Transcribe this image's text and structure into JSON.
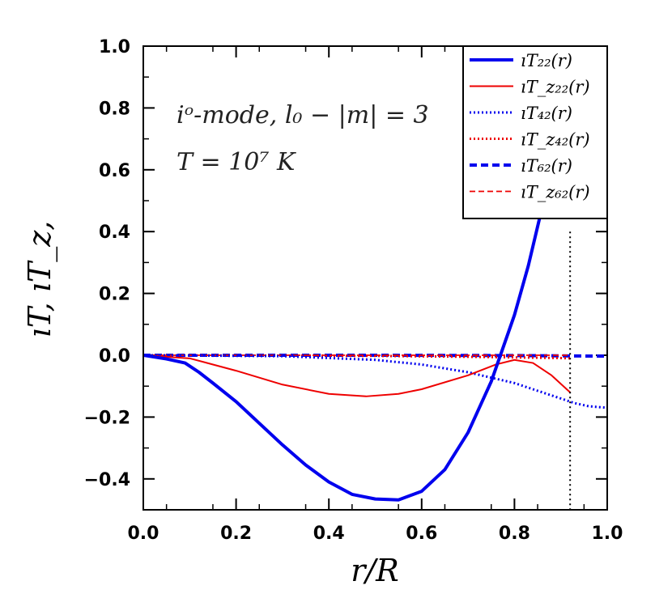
{
  "chart_data": {
    "type": "line",
    "xlabel": "r/R",
    "ylabel": "ıT, ıT_z,",
    "xlim": [
      0.0,
      1.0
    ],
    "ylim": [
      -0.5,
      1.0
    ],
    "xticks": [
      "0.0",
      "0.2",
      "0.4",
      "0.6",
      "0.8",
      "1.0"
    ],
    "yticks": [
      "−0.4",
      "−0.2",
      "0.0",
      "0.2",
      "0.4",
      "0.6",
      "0.8",
      "1.0"
    ],
    "annotations": [
      "iᵒ-mode, l₀ − |m| = 3",
      "T = 10⁷ K"
    ],
    "vertical_line_x": 0.92,
    "legend_position": "top-right",
    "series": [
      {
        "name": "ıT₂₂(r)",
        "color": "#0000ee",
        "style": "solid-thick",
        "x": [
          0.0,
          0.05,
          0.09,
          0.12,
          0.15,
          0.2,
          0.25,
          0.3,
          0.35,
          0.4,
          0.45,
          0.5,
          0.55,
          0.6,
          0.65,
          0.7,
          0.75,
          0.8,
          0.83,
          0.86
        ],
        "y": [
          0.0,
          -0.012,
          -0.025,
          -0.055,
          -0.09,
          -0.15,
          -0.22,
          -0.29,
          -0.355,
          -0.41,
          -0.45,
          -0.465,
          -0.468,
          -0.44,
          -0.37,
          -0.25,
          -0.085,
          0.13,
          0.29,
          0.48
        ]
      },
      {
        "name": "ıT_z₂₂(r)",
        "color": "#ee0000",
        "style": "solid-thin",
        "x": [
          0.0,
          0.1,
          0.2,
          0.3,
          0.4,
          0.48,
          0.55,
          0.6,
          0.7,
          0.76,
          0.8,
          0.84,
          0.88,
          0.92
        ],
        "y": [
          0.0,
          -0.01,
          -0.05,
          -0.095,
          -0.125,
          -0.133,
          -0.125,
          -0.11,
          -0.065,
          -0.03,
          -0.015,
          -0.025,
          -0.065,
          -0.12
        ]
      },
      {
        "name": "ıT₄₂(r)",
        "color": "#0000ee",
        "style": "dotted",
        "x": [
          0.0,
          0.3,
          0.5,
          0.6,
          0.7,
          0.8,
          0.85,
          0.9,
          0.93,
          0.96,
          1.0
        ],
        "y": [
          0.0,
          -0.003,
          -0.015,
          -0.03,
          -0.055,
          -0.09,
          -0.115,
          -0.14,
          -0.155,
          -0.165,
          -0.17
        ]
      },
      {
        "name": "ıT_z₄₂(r)",
        "color": "#ee0000",
        "style": "dotted",
        "x": [
          0.0,
          0.5,
          0.7,
          0.8,
          0.85,
          0.9,
          0.92
        ],
        "y": [
          0.0,
          -0.002,
          -0.005,
          -0.007,
          -0.008,
          -0.009,
          -0.01
        ]
      },
      {
        "name": "ıT₆₂(r)",
        "color": "#0000ee",
        "style": "dashed-thick",
        "x": [
          0.0,
          0.5,
          0.8,
          0.9,
          1.0
        ],
        "y": [
          0.0,
          0.0,
          -0.001,
          -0.002,
          -0.003
        ]
      },
      {
        "name": "ıT_z₆₂(r)",
        "color": "#ee0000",
        "style": "dashed-thin",
        "x": [
          0.0,
          0.5,
          0.8,
          0.92
        ],
        "y": [
          0.0,
          0.0,
          0.0,
          0.0
        ]
      }
    ]
  }
}
